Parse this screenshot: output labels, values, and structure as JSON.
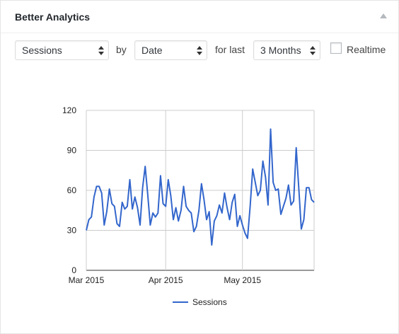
{
  "widget": {
    "title": "Better Analytics"
  },
  "controls": {
    "metric": "Sessions",
    "by_label": "by",
    "dimension": "Date",
    "for_last_label": "for last",
    "period": "3 Months",
    "realtime_label": "Realtime",
    "realtime_checked": false
  },
  "chart_data": {
    "type": "line",
    "xlabel": "",
    "ylabel": "",
    "ylim": [
      0,
      120
    ],
    "yticks": [
      0,
      30,
      60,
      90,
      120
    ],
    "xtick_labels": [
      "Mar 2015",
      "Apr 2015",
      "May 2015"
    ],
    "xtick_indices": [
      0,
      31,
      61
    ],
    "x_start": "2015-03-01",
    "x_end": "2015-05-31",
    "grid": true,
    "legend": "bottom",
    "series": [
      {
        "name": "Sessions",
        "color": "#3366cc",
        "values": [
          30,
          38,
          40,
          55,
          63,
          63,
          58,
          34,
          44,
          61,
          50,
          48,
          35,
          33,
          51,
          46,
          48,
          68,
          46,
          55,
          47,
          34,
          62,
          78,
          57,
          34,
          43,
          40,
          43,
          71,
          50,
          48,
          68,
          56,
          38,
          47,
          37,
          45,
          63,
          48,
          45,
          43,
          29,
          33,
          45,
          65,
          53,
          38,
          44,
          19,
          37,
          41,
          49,
          43,
          58,
          47,
          38,
          51,
          57,
          33,
          41,
          34,
          28,
          24,
          48,
          76,
          66,
          56,
          60,
          82,
          70,
          49,
          106,
          66,
          60,
          61,
          42,
          48,
          54,
          64,
          49,
          52,
          92,
          62,
          31,
          38,
          62,
          62,
          53,
          51
        ]
      }
    ]
  }
}
